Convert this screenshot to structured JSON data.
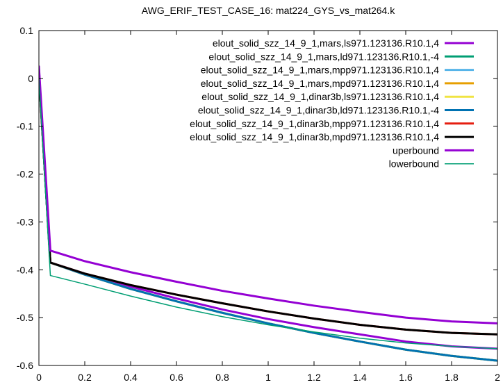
{
  "chart_data": {
    "type": "line",
    "title": "AWG_ERIF_TEST_CASE_16: mat224_GYS_vs_mat264.k",
    "xlabel": "",
    "ylabel": "",
    "xlim": [
      0,
      2
    ],
    "ylim": [
      -0.6,
      0.1
    ],
    "x_ticks": [
      "0",
      "0.2",
      "0.4",
      "0.6",
      "0.8",
      "1",
      "1.2",
      "1.4",
      "1.6",
      "1.8",
      "2"
    ],
    "y_ticks": [
      "0.1",
      "0",
      "-0.1",
      "-0.2",
      "-0.3",
      "-0.4",
      "-0.5",
      "-0.6"
    ],
    "grid": false,
    "legend_position": "top-right",
    "series": [
      {
        "name": "elout_solid_szz_14_9_1,mars,ls971.123136.R10.1,4",
        "color": "#9400d3",
        "width": 3,
        "x": [
          0,
          0.05,
          0.2,
          0.4,
          0.6,
          0.8,
          1.0,
          1.2,
          1.4,
          1.6,
          1.8,
          2.0
        ],
        "y": [
          0.02,
          -0.385,
          -0.408,
          -0.435,
          -0.46,
          -0.483,
          -0.503,
          -0.52,
          -0.535,
          -0.55,
          -0.56,
          -0.565
        ]
      },
      {
        "name": "elout_solid_szz_14_9_1,mars,ld971.123136.R10.1,-4",
        "color": "#009e73",
        "width": 3,
        "x": [
          0,
          0.05,
          0.2,
          0.4,
          0.6,
          0.8,
          1.0,
          1.2,
          1.4,
          1.6,
          1.8,
          2.0
        ],
        "y": [
          0.01,
          -0.385,
          -0.41,
          -0.44,
          -0.466,
          -0.49,
          -0.512,
          -0.532,
          -0.55,
          -0.567,
          -0.58,
          -0.59
        ]
      },
      {
        "name": "elout_solid_szz_14_9_1,mars,mpp971.123136.R10.1,4",
        "color": "#56b4e9",
        "width": 3,
        "x": [
          0,
          0.05,
          0.2,
          0.4,
          0.6,
          0.8,
          1.0,
          1.2,
          1.4,
          1.6,
          1.8,
          2.0
        ],
        "y": [
          0.01,
          -0.385,
          -0.41,
          -0.44,
          -0.466,
          -0.49,
          -0.512,
          -0.532,
          -0.55,
          -0.567,
          -0.58,
          -0.59
        ]
      },
      {
        "name": "elout_solid_szz_14_9_1,mars,mpd971.123136.R10.1,4",
        "color": "#e69f00",
        "width": 3,
        "x": [
          0,
          0.05,
          0.2,
          0.4,
          0.6,
          0.8,
          1.0,
          1.2,
          1.4,
          1.6,
          1.8,
          2.0
        ],
        "y": [
          0.01,
          -0.385,
          -0.41,
          -0.44,
          -0.466,
          -0.49,
          -0.512,
          -0.532,
          -0.55,
          -0.567,
          -0.58,
          -0.59
        ]
      },
      {
        "name": "elout_solid_szz_14_9_1,dinar3b,ls971.123136.R10.1,4",
        "color": "#f0e442",
        "width": 3,
        "x": [
          0,
          0.05,
          0.2,
          0.4,
          0.6,
          0.8,
          1.0,
          1.2,
          1.4,
          1.6,
          1.8,
          2.0
        ],
        "y": [
          0.01,
          -0.385,
          -0.41,
          -0.44,
          -0.466,
          -0.49,
          -0.512,
          -0.532,
          -0.55,
          -0.567,
          -0.58,
          -0.59
        ]
      },
      {
        "name": "elout_solid_szz_14_9_1,dinar3b,ld971.123136.R10.1,-4",
        "color": "#0072b2",
        "width": 3,
        "x": [
          0,
          0.05,
          0.2,
          0.4,
          0.6,
          0.8,
          1.0,
          1.2,
          1.4,
          1.6,
          1.8,
          2.0
        ],
        "y": [
          0.01,
          -0.385,
          -0.41,
          -0.44,
          -0.466,
          -0.49,
          -0.512,
          -0.532,
          -0.55,
          -0.567,
          -0.58,
          -0.59
        ]
      },
      {
        "name": "elout_solid_szz_14_9_1,dinar3b,mpp971.123136.R10.1,4",
        "color": "#e51e10",
        "width": 3,
        "x": [
          0,
          0.05,
          0.2,
          0.4,
          0.6,
          0.8,
          1.0,
          1.2,
          1.4,
          1.6,
          1.8,
          2.0
        ],
        "y": [
          0.01,
          -0.385,
          -0.408,
          -0.432,
          -0.452,
          -0.47,
          -0.487,
          -0.502,
          -0.515,
          -0.525,
          -0.532,
          -0.535
        ]
      },
      {
        "name": "elout_solid_szz_14_9_1,dinar3b,mpd971.123136.R10.1,4",
        "color": "#000000",
        "width": 3,
        "x": [
          0,
          0.05,
          0.2,
          0.4,
          0.6,
          0.8,
          1.0,
          1.2,
          1.4,
          1.6,
          1.8,
          2.0
        ],
        "y": [
          0.01,
          -0.385,
          -0.408,
          -0.432,
          -0.452,
          -0.47,
          -0.487,
          -0.502,
          -0.515,
          -0.525,
          -0.532,
          -0.535
        ]
      },
      {
        "name": "uperbound",
        "color": "#9400d3",
        "width": 3,
        "x": [
          0,
          0.05,
          0.2,
          0.4,
          0.6,
          0.8,
          1.0,
          1.2,
          1.4,
          1.6,
          1.8,
          2.0
        ],
        "y": [
          0.025,
          -0.36,
          -0.382,
          -0.405,
          -0.425,
          -0.444,
          -0.46,
          -0.475,
          -0.488,
          -0.5,
          -0.508,
          -0.512
        ]
      },
      {
        "name": "lowerbound",
        "color": "#009e73",
        "width": 1.5,
        "x": [
          0,
          0.05,
          0.2,
          0.4,
          0.6,
          0.8,
          1.0,
          1.2,
          1.4,
          1.6,
          1.8,
          2.0
        ],
        "y": [
          0.0,
          -0.412,
          -0.43,
          -0.455,
          -0.478,
          -0.498,
          -0.515,
          -0.53,
          -0.543,
          -0.553,
          -0.56,
          -0.565
        ]
      }
    ]
  }
}
